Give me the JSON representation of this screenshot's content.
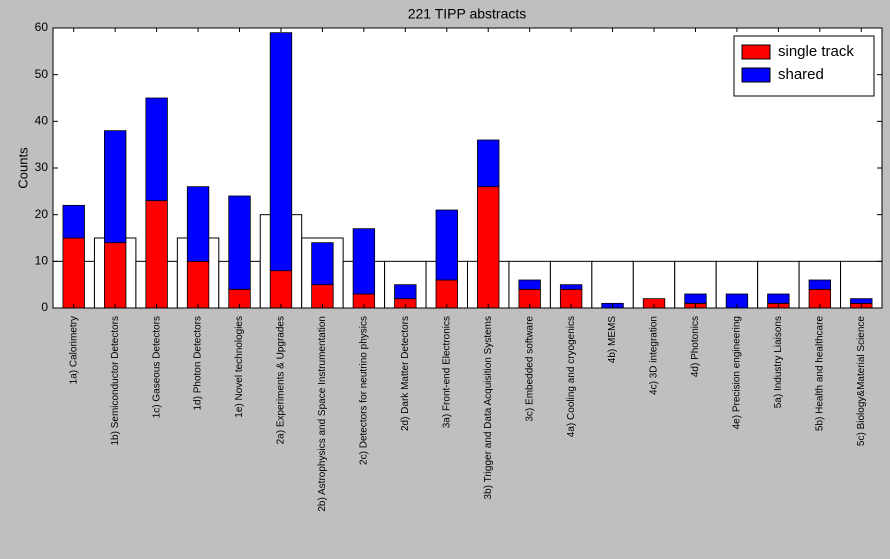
{
  "chart_data": {
    "type": "stacked_bar",
    "title": "221 TIPP abstracts",
    "y_label": "Counts",
    "categories": [
      "1a) Calorimetry",
      "1b) Semiconductor Detectors",
      "1c) Gaseous Detectors",
      "1d) Photon Detectors",
      "1e) Novel technologies",
      "2a) Experiments & Upgrades",
      "2b) Astrophysics and Space Instrumentation",
      "2c) Detectors for neutrino physics",
      "2d) Dark Matter Detectors",
      "3a) Front-end Electronics",
      "3b) Trigger and Data Acquisition Systems",
      "3c) Embedded software",
      "4a) Cooling and cryogenics",
      "4b) MEMS",
      "4c) 3D integration",
      "4d) Photonics",
      "4e) Precision engineering",
      "5a) Industry Liaisons",
      "5b) Health and healthcare",
      "5c) Biology&Material Science"
    ],
    "series": [
      {
        "name": "single track",
        "color": "#ff0000",
        "values": [
          15,
          14,
          23,
          10,
          4,
          8,
          5,
          3,
          2,
          6,
          26,
          4,
          4,
          0,
          2,
          1,
          0,
          1,
          4,
          1
        ]
      },
      {
        "name": "shared",
        "color": "#0000ff",
        "values": [
          7,
          24,
          22,
          16,
          20,
          51,
          9,
          14,
          3,
          15,
          10,
          2,
          1,
          1,
          0,
          2,
          3,
          2,
          2,
          1
        ]
      }
    ],
    "box_values": [
      10,
      15,
      10,
      15,
      10,
      20,
      15,
      10,
      10,
      10,
      10,
      10,
      10,
      10,
      10,
      10,
      10,
      10,
      10,
      10
    ],
    "ylim": [
      0,
      60
    ],
    "yticks": [
      0,
      10,
      20,
      30,
      40,
      50,
      60
    ],
    "legend": "upper right"
  }
}
